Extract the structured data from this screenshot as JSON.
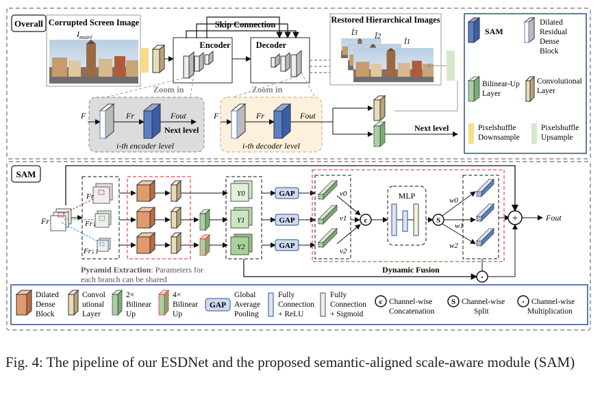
{
  "overall": {
    "tag": "Overall",
    "input_title": "Corrupted Screen Image",
    "input_symbol": "I",
    "input_symbol_sub": "moiré",
    "encoder": "Encoder",
    "decoder": "Decoder",
    "skip": "Skip Connection",
    "restored_title": "Restored Hierarchical Images",
    "out_labels": [
      "Î3",
      "Î2",
      "Î1"
    ],
    "zoom": "Zoom in",
    "enc_F": "F",
    "enc_Fr": "Fr",
    "enc_Fout": "Fout",
    "next": "Next level",
    "enc_level": "i-th encoder level",
    "dec_level": "i-th decoder level"
  },
  "legend_top": {
    "sam": "SAM",
    "drdb": [
      "Dilated",
      "Residual",
      "Dense",
      "Block"
    ],
    "bilinear": [
      "Bilinear-Up",
      "Layer"
    ],
    "conv": [
      "Convolutional",
      "Layer"
    ],
    "ps_down": [
      "Pixelshuffle",
      "Downsample"
    ],
    "ps_up": [
      "Pixelshuffle",
      "Upsample"
    ]
  },
  "sam": {
    "tag": "SAM",
    "input": "Fr",
    "pyr": [
      "Fr",
      "Fr↓",
      "Fr↓↓"
    ],
    "y": [
      "Y0",
      "Y1",
      "Y2"
    ],
    "gap": "GAP",
    "v": [
      "v0",
      "v1",
      "v2"
    ],
    "concat": "c",
    "mlp": "MLP",
    "split": "S",
    "w": [
      "w0",
      "w1",
      "w2"
    ],
    "plus": "+",
    "dot": "·",
    "output": "Fout",
    "pyramid_bold": "Pyramid Extraction",
    "pyramid_rest": ": Parameters for",
    "pyramid_line2": "each branch can be shared",
    "dynamic": "Dynamic Fusion"
  },
  "legend_bottom": {
    "ddb": [
      "Dilated",
      "Dense",
      "Block"
    ],
    "conv": [
      "Convol",
      "utional",
      "Layer"
    ],
    "bi2": [
      "2×",
      "Bilinear",
      "Up"
    ],
    "bi4": [
      "4×",
      "Bilinear",
      "Up"
    ],
    "gap": "GAP",
    "gap_text": [
      "Global",
      "Average",
      "Pooling"
    ],
    "fc_relu": [
      "Fully",
      "Connection",
      "+ ReLU"
    ],
    "fc_sig": [
      "Fully",
      "Connection",
      "+ Sigmoid"
    ],
    "cw_concat": [
      "Channel-wise",
      "Concatenation"
    ],
    "cw_split": [
      "Channel-wise",
      "Split"
    ],
    "cw_mult": [
      "Channel-wise",
      "Multiplication"
    ]
  },
  "caption": "Fig. 4: The pipeline of our ESDNet and the proposed semantic-aligned scale-aware module (SAM)",
  "colors": {
    "sam_blue": "#5b7fc4",
    "conv_tan": "#e9dcb6",
    "ddb_orange": "#e09a6c",
    "bilinear_green": "#a9cfa2",
    "ps_down": "#f6dd8a",
    "ps_up": "#d5e8cc",
    "red_dash": "#e02020",
    "legend_blue": "#2f4f8f"
  }
}
